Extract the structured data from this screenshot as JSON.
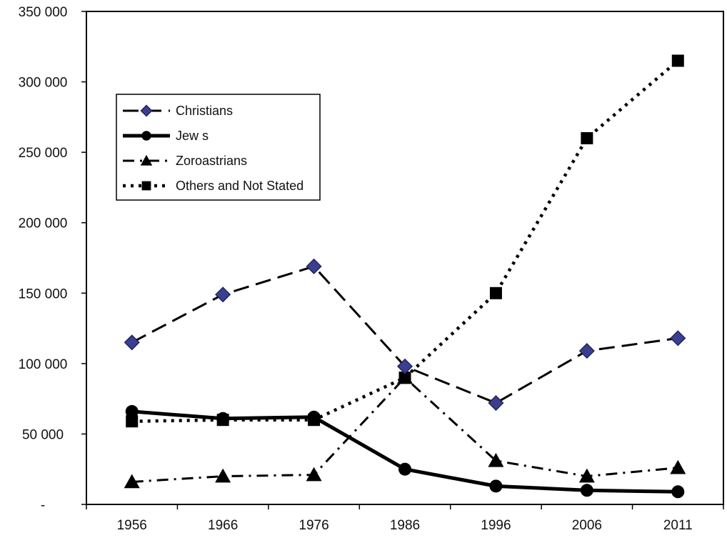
{
  "chart_data": {
    "type": "line",
    "title": "",
    "xlabel": "",
    "ylabel": "",
    "categories": [
      "1956",
      "1966",
      "1976",
      "1986",
      "1996",
      "2006",
      "2011"
    ],
    "y_tick_labels": [
      "-",
      "50 000",
      "100 000",
      "150 000",
      "200 000",
      "250 000",
      "300 000",
      "350 000"
    ],
    "y_ticks": [
      0,
      50000,
      100000,
      150000,
      200000,
      250000,
      300000,
      350000
    ],
    "ylim": [
      0,
      350000
    ],
    "grid": false,
    "legend_position": "upper-left",
    "series": [
      {
        "name": "Christians",
        "marker": "diamond",
        "line_style": "long-dash",
        "color": "#3b3f8f",
        "values": [
          115000,
          149000,
          169000,
          98000,
          72000,
          109000,
          118000
        ]
      },
      {
        "name": "Jew s",
        "marker": "circle",
        "line_style": "solid",
        "color": "#000000",
        "values": [
          66000,
          61000,
          62000,
          25000,
          13000,
          10000,
          9000
        ]
      },
      {
        "name": "Zoroastrians",
        "marker": "triangle",
        "line_style": "dash-dot",
        "color": "#000000",
        "values": [
          16000,
          20000,
          21000,
          90000,
          31000,
          20000,
          26000
        ]
      },
      {
        "name": "Others and Not Stated",
        "marker": "square",
        "line_style": "dotted",
        "color": "#000000",
        "values": [
          59000,
          60000,
          60000,
          90000,
          150000,
          260000,
          315000
        ]
      }
    ]
  }
}
